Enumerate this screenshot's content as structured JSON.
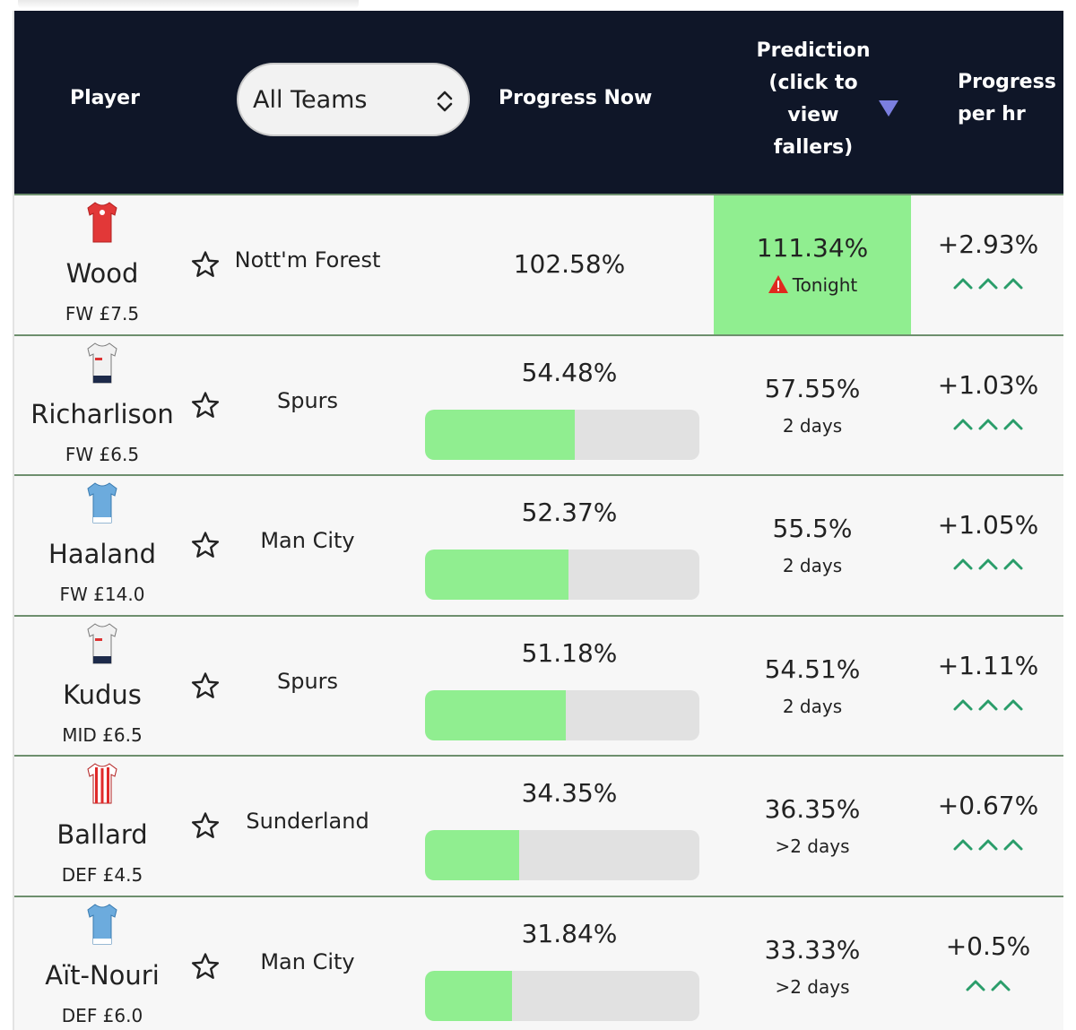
{
  "header": {
    "player": "Player",
    "team_select": "All Teams",
    "progress_now": "Progress Now",
    "prediction": [
      "Prediction",
      "(click to",
      "view",
      "fallers)"
    ],
    "progress_per_hr": [
      "Progress",
      "per hr"
    ]
  },
  "colors": {
    "header_bg": "#0f1628",
    "bar_fill": "#90ee90",
    "bar_bg": "#e1e1e1",
    "chevron": "#2a9d6a",
    "warning": "#e0281e",
    "sort_arrow": "#7b7fe0"
  },
  "rows": [
    {
      "name": "Wood",
      "meta": "FW £7.5",
      "team": "Nott'm Forest",
      "kit": "red",
      "progress_now": "102.58%",
      "progress_fraction": null,
      "prediction": "111.34%",
      "prediction_when": "Tonight",
      "prediction_highlight": true,
      "per_hr": "+2.93%",
      "chevrons": 3
    },
    {
      "name": "Richarlison",
      "meta": "FW £6.5",
      "team": "Spurs",
      "kit": "white",
      "progress_now": "54.48%",
      "progress_fraction": 0.5448,
      "prediction": "57.55%",
      "prediction_when": "2 days",
      "prediction_highlight": false,
      "per_hr": "+1.03%",
      "chevrons": 3
    },
    {
      "name": "Haaland",
      "meta": "FW £14.0",
      "team": "Man City",
      "kit": "sky",
      "progress_now": "52.37%",
      "progress_fraction": 0.5237,
      "prediction": "55.5%",
      "prediction_when": "2 days",
      "prediction_highlight": false,
      "per_hr": "+1.05%",
      "chevrons": 3
    },
    {
      "name": "Kudus",
      "meta": "MID £6.5",
      "team": "Spurs",
      "kit": "white",
      "progress_now": "51.18%",
      "progress_fraction": 0.5118,
      "prediction": "54.51%",
      "prediction_when": "2 days",
      "prediction_highlight": false,
      "per_hr": "+1.11%",
      "chevrons": 3
    },
    {
      "name": "Ballard",
      "meta": "DEF £4.5",
      "team": "Sunderland",
      "kit": "stripes",
      "progress_now": "34.35%",
      "progress_fraction": 0.3435,
      "prediction": "36.35%",
      "prediction_when": ">2 days",
      "prediction_highlight": false,
      "per_hr": "+0.67%",
      "chevrons": 3
    },
    {
      "name": "Aït-Nouri",
      "meta": "DEF £6.0",
      "team": "Man City",
      "kit": "sky",
      "progress_now": "31.84%",
      "progress_fraction": 0.3184,
      "prediction": "33.33%",
      "prediction_when": ">2 days",
      "prediction_highlight": false,
      "per_hr": "+0.5%",
      "chevrons": 2
    }
  ]
}
